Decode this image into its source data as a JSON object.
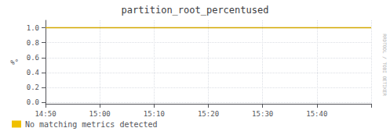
{
  "chart_data": {
    "type": "line",
    "title": "partition_root_percentused",
    "ylabel": "%°",
    "categories": [
      "14:50",
      "15:00",
      "15:10",
      "15:20",
      "15:30",
      "15:40",
      null
    ],
    "series": [
      {
        "color": "#d4a800",
        "values": [
          1.0,
          1.0,
          1.0,
          1.0,
          1.0,
          1.0,
          1.0
        ]
      },
      {
        "name": "No matching metrics detected",
        "color": "#f0c000",
        "values": [
          null,
          null,
          null,
          null,
          null,
          null,
          null
        ]
      }
    ],
    "ylim": [
      -0.02,
      1.1
    ],
    "yticks": [
      {
        "value": 0.0,
        "label": "0.0"
      },
      0.2,
      0.4,
      0.6,
      0.8,
      {
        "value": 1.0,
        "label": "1.0"
      }
    ],
    "grid": true,
    "legend": "lower left",
    "annotations": [
      "RRDTOOL / TOBI OETIKER"
    ]
  }
}
